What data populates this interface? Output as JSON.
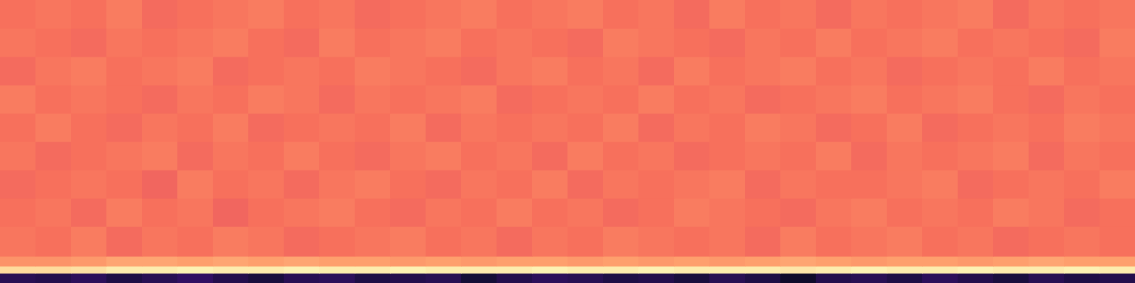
{
  "chart_data": {
    "type": "heatmap",
    "xlim": [
      0,
      32
    ],
    "ylim": [
      0,
      100
    ],
    "y_bins": [
      0,
      3.5,
      6,
      9.5,
      20,
      30,
      40,
      50,
      60,
      70,
      80,
      90,
      100
    ],
    "color_range": [
      -80,
      0
    ],
    "tick_labels": false,
    "cells": [
      [
        -68,
        -69,
        -67,
        -70,
        -68,
        -66,
        -69,
        -71,
        -68,
        -67,
        -70,
        -69,
        -68,
        -72,
        -69,
        -67,
        -68,
        -70,
        -69,
        -71,
        -68,
        -70,
        -74,
        -69,
        -68,
        -70,
        -67,
        -69,
        -71,
        -68,
        -70,
        -69
      ],
      [
        -6,
        -6,
        -5,
        -3,
        -3,
        -2,
        -3,
        -3,
        -2,
        -3,
        -3,
        -2,
        -3,
        -3,
        -3,
        -2,
        -3,
        -3,
        -2,
        -3,
        -3,
        -3,
        -4,
        -3,
        -2,
        -3,
        -3,
        -2,
        -3,
        -3,
        -2,
        -3
      ],
      [
        -18,
        -18,
        -17,
        -15,
        -15,
        -16,
        -15,
        -16,
        -15,
        -16,
        -16,
        -17,
        -16,
        -17,
        -16,
        -16,
        -17,
        -16,
        -17,
        -16,
        -17,
        -16,
        -15,
        -16,
        -17,
        -16,
        -16,
        -17,
        -16,
        -15,
        -16,
        -16
      ],
      [
        -23,
        -24,
        -22,
        -25,
        -23,
        -24,
        -22,
        -23,
        -25,
        -24,
        -23,
        -22,
        -24,
        -23,
        -25,
        -23,
        -24,
        -22,
        -23,
        -24,
        -23,
        -25,
        -22,
        -24,
        -23,
        -22,
        -24,
        -23,
        -25,
        -24,
        -23,
        -24
      ],
      [
        -24,
        -23,
        -25,
        -22,
        -24,
        -23,
        -26,
        -24,
        -23,
        -22,
        -24,
        -25,
        -23,
        -24,
        -22,
        -24,
        -23,
        -25,
        -24,
        -22,
        -23,
        -24,
        -25,
        -23,
        -22,
        -24,
        -23,
        -24,
        -22,
        -23,
        -25,
        -24
      ],
      [
        -25,
        -24,
        -23,
        -24,
        -26,
        -22,
        -24,
        -23,
        -25,
        -23,
        -22,
        -24,
        -25,
        -23,
        -24,
        -22,
        -25,
        -23,
        -24,
        -23,
        -22,
        -25,
        -23,
        -24,
        -24,
        -23,
        -22,
        -25,
        -24,
        -23,
        -24,
        -22
      ],
      [
        -23,
        -25,
        -24,
        -23,
        -22,
        -25,
        -23,
        -24,
        -22,
        -24,
        -25,
        -23,
        -22,
        -24,
        -23,
        -25,
        -22,
        -24,
        -23,
        -25,
        -24,
        -23,
        -24,
        -22,
        -25,
        -23,
        -24,
        -23,
        -22,
        -25,
        -23,
        -24
      ],
      [
        -24,
        -22,
        -24,
        -25,
        -23,
        -24,
        -22,
        -25,
        -24,
        -23,
        -24,
        -22,
        -25,
        -23,
        -24,
        -23,
        -24,
        -22,
        -25,
        -23,
        -24,
        -22,
        -23,
        -25,
        -24,
        -22,
        -25,
        -24,
        -23,
        -24,
        -22,
        -23
      ],
      [
        -22,
        -24,
        -23,
        -24,
        -25,
        -23,
        -24,
        -22,
        -23,
        -25,
        -23,
        -24,
        -23,
        -22,
        -25,
        -24,
        -23,
        -24,
        -22,
        -24,
        -23,
        -25,
        -24,
        -23,
        -22,
        -24,
        -23,
        -22,
        -24,
        -25,
        -23,
        -24
      ],
      [
        -25,
        -23,
        -22,
        -24,
        -23,
        -22,
        -25,
        -24,
        -23,
        -24,
        -22,
        -23,
        -24,
        -25,
        -23,
        -22,
        -24,
        -23,
        -25,
        -22,
        -24,
        -23,
        -22,
        -24,
        -23,
        -25,
        -24,
        -23,
        -24,
        -22,
        -24,
        -23
      ],
      [
        -23,
        -24,
        -25,
        -23,
        -24,
        -23,
        -22,
        -24,
        -25,
        -22,
        -24,
        -23,
        -22,
        -24,
        -23,
        -24,
        -25,
        -22,
        -23,
        -24,
        -25,
        -23,
        -24,
        -22,
        -24,
        -23,
        -22,
        -24,
        -23,
        -24,
        -25,
        -22
      ],
      [
        -24,
        -23,
        -24,
        -22,
        -25,
        -24,
        -23,
        -22,
        -24,
        -23,
        -25,
        -24,
        -23,
        -22,
        -24,
        -23,
        -22,
        -24,
        -23,
        -25,
        -22,
        -24,
        -23,
        -25,
        -23,
        -24,
        -23,
        -22,
        -25,
        -23,
        -24,
        -23
      ]
    ]
  }
}
